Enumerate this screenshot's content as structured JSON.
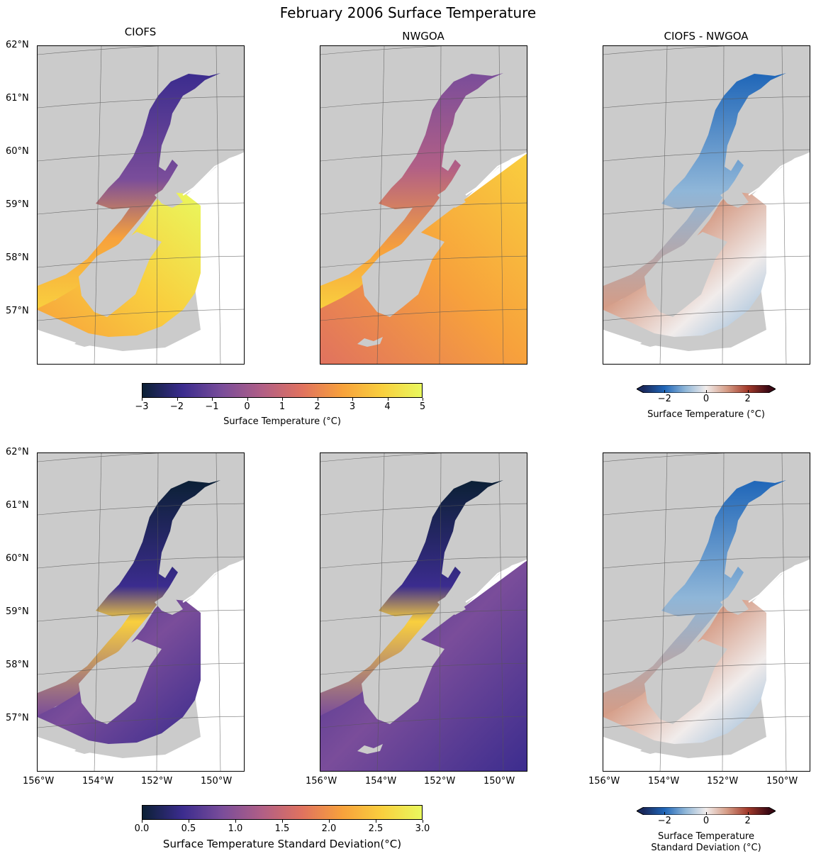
{
  "figure": {
    "title": "February 2006 Surface Temperature"
  },
  "columns": [
    "CIOFS",
    "NWGOA",
    "CIOFS - NWGOA"
  ],
  "lat_labels": [
    "62°N",
    "61°N",
    "60°N",
    "59°N",
    "58°N",
    "57°N"
  ],
  "lon_labels": [
    "156°W",
    "154°W",
    "152°W",
    "150°W"
  ],
  "colorbars": {
    "mean_abs": {
      "ticks": [
        "−3",
        "−2",
        "−1",
        "0",
        "1",
        "2",
        "3",
        "4",
        "5"
      ],
      "label": "Surface Temperature (°C)",
      "range": [
        -3,
        5
      ]
    },
    "mean_diff": {
      "ticks": [
        "−2",
        "0",
        "2"
      ],
      "label": "Surface Temperature (°C)",
      "range": [
        -3,
        3
      ]
    },
    "std_abs": {
      "ticks": [
        "0.0",
        "0.5",
        "1.0",
        "1.5",
        "2.0",
        "2.5",
        "3.0"
      ],
      "label": "Surface Temperature Standard Deviation(°C)",
      "range": [
        0,
        3
      ]
    },
    "std_diff": {
      "ticks": [
        "−2",
        "0",
        "2"
      ],
      "label_line1": "Surface Temperature",
      "label_line2": "Standard Deviation (°C)",
      "range": [
        -3,
        3
      ]
    }
  },
  "colors": {
    "land": "#cbcbcb",
    "ocean_outside": "#ffffff",
    "thermal": [
      "#0b2035",
      "#3b2c8e",
      "#7a4d9a",
      "#b15f86",
      "#e0725f",
      "#f7a13c",
      "#f9cf3e",
      "#e9f85e"
    ],
    "balance": [
      "#1a2a5e",
      "#1f66b8",
      "#8fb6d8",
      "#f1eceb",
      "#d59c86",
      "#a33a2b",
      "#3c0914"
    ]
  },
  "chart_data": {
    "type": "heatmap",
    "panels": [
      {
        "row": "mean",
        "column": "CIOFS",
        "variable": "Surface Temperature",
        "units": "°C",
        "range": [
          -3,
          5
        ]
      },
      {
        "row": "mean",
        "column": "NWGOA",
        "variable": "Surface Temperature",
        "units": "°C",
        "range": [
          -3,
          5
        ]
      },
      {
        "row": "mean",
        "column": "CIOFS - NWGOA",
        "variable": "Surface Temperature difference",
        "units": "°C",
        "range": [
          -3,
          3
        ]
      },
      {
        "row": "std",
        "column": "CIOFS",
        "variable": "Surface Temperature Standard Deviation",
        "units": "°C",
        "range": [
          0,
          3
        ]
      },
      {
        "row": "std",
        "column": "NWGOA",
        "variable": "Surface Temperature Standard Deviation",
        "units": "°C",
        "range": [
          0,
          3
        ]
      },
      {
        "row": "std",
        "column": "CIOFS - NWGOA",
        "variable": "Surface Temperature Standard Deviation difference",
        "units": "°C",
        "range": [
          -3,
          3
        ]
      }
    ],
    "lat_range": [
      56,
      62
    ],
    "lon_range": [
      -156,
      -149
    ],
    "grid": true
  }
}
